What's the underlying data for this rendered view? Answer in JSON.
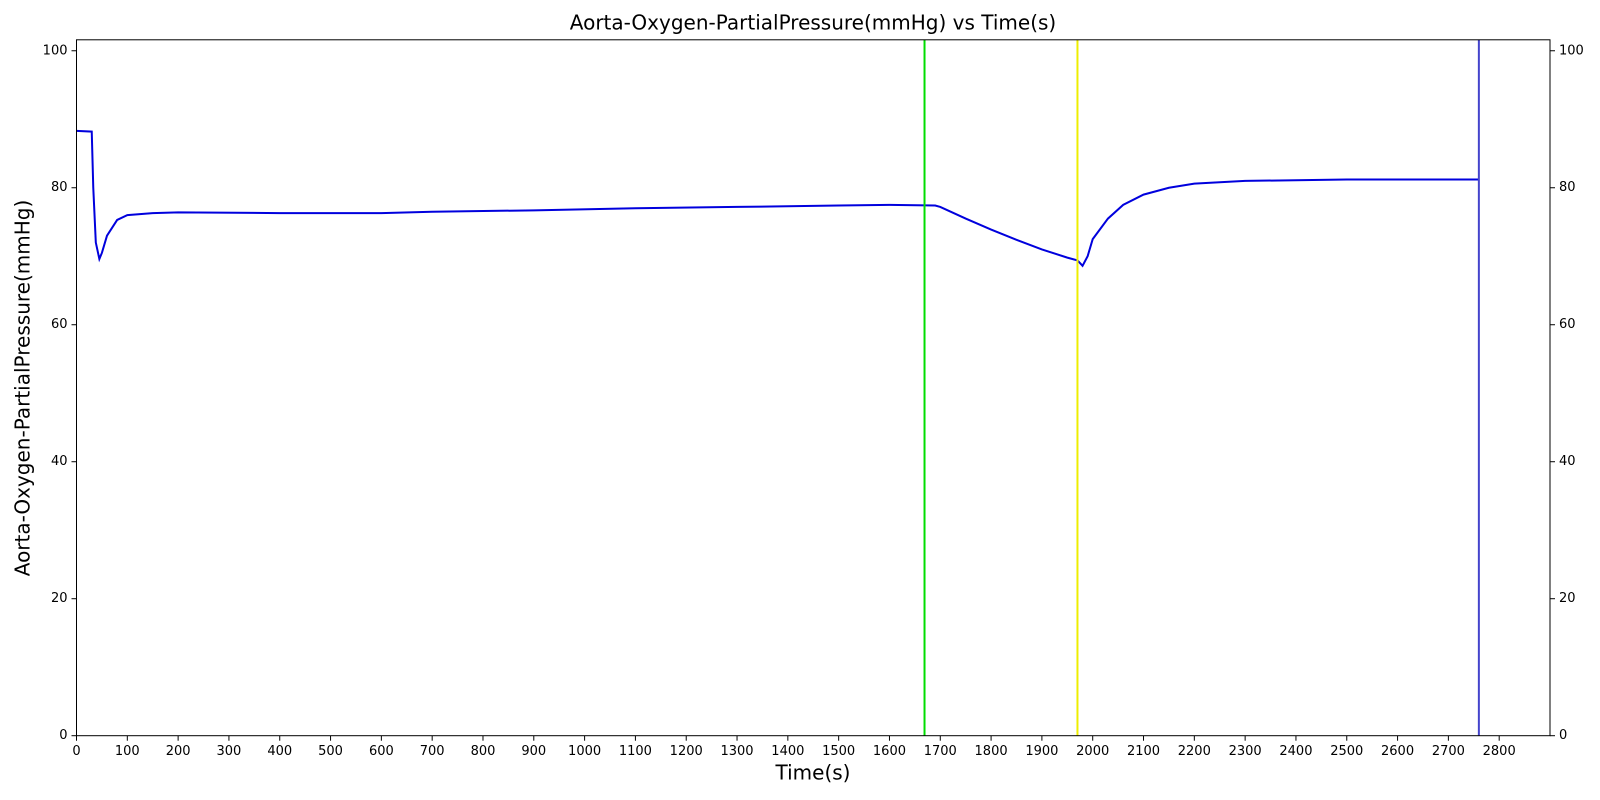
{
  "chart_data": {
    "type": "line",
    "title": "Aorta-Oxygen-PartialPressure(mmHg) vs Time(s)",
    "xlabel": "Time(s)",
    "ylabel": "Aorta-Oxygen-PartialPressure(mmHg)",
    "x": [
      0,
      30,
      33,
      38,
      45,
      50,
      60,
      80,
      100,
      150,
      200,
      400,
      600,
      700,
      900,
      1100,
      1300,
      1500,
      1600,
      1690,
      1700,
      1750,
      1800,
      1850,
      1900,
      1950,
      1970,
      1975,
      1980,
      1990,
      2000,
      2030,
      2060,
      2100,
      2150,
      2200,
      2300,
      2500,
      2760
    ],
    "color": "#0000dd",
    "values": [
      88.3,
      88.2,
      80,
      72,
      69.6,
      70.5,
      73,
      75.3,
      76,
      76.3,
      76.4,
      76.3,
      76.3,
      76.5,
      76.7,
      77.0,
      77.2,
      77.4,
      77.5,
      77.4,
      77.2,
      75.5,
      73.9,
      72.4,
      71.0,
      69.8,
      69.4,
      69.0,
      68.6,
      70.0,
      72.5,
      75.5,
      77.5,
      79.0,
      80.0,
      80.6,
      81.0,
      81.2,
      81.2
    ],
    "vlines": [
      {
        "x": 1669,
        "color": "#00dd00"
      },
      {
        "x": 1970,
        "color": "#eeee00"
      },
      {
        "x": 2760,
        "color": "#4444cc"
      }
    ],
    "xlim": [
      0,
      2900
    ],
    "xticks": [
      0,
      100,
      200,
      300,
      400,
      500,
      600,
      700,
      800,
      900,
      1000,
      1100,
      1200,
      1300,
      1400,
      1500,
      1600,
      1700,
      1800,
      1900,
      2000,
      2100,
      2200,
      2300,
      2400,
      2500,
      2600,
      2700,
      2800
    ],
    "ylim": [
      0,
      101.6
    ],
    "yticks": [
      0,
      20,
      40,
      60,
      80,
      100
    ],
    "y2lim": [
      0,
      101.6
    ],
    "y2ticks": [
      0,
      20,
      40,
      60,
      80,
      100
    ],
    "grid": false
  }
}
